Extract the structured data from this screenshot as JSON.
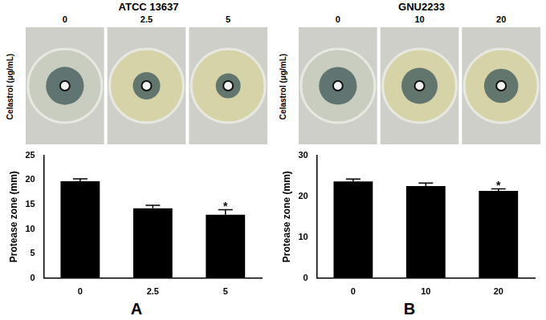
{
  "chart_data": [
    {
      "type": "bar",
      "panel": "A",
      "title": "ATCC 13637",
      "plate_label": "Celastrol (μg/mL)",
      "plate_concentrations": [
        0,
        2.5,
        5
      ],
      "categories": [
        "0",
        "2.5",
        "5"
      ],
      "values": [
        19.7,
        14.2,
        12.9
      ],
      "errors": [
        0.5,
        0.6,
        1.0
      ],
      "color": "#000000",
      "y_label": "Protease zone (mm)",
      "ylim": [
        0,
        25
      ],
      "yticks": [
        0,
        5,
        10,
        15,
        20,
        25
      ],
      "grid": false,
      "annotations": [
        {
          "category": "5",
          "text": "*"
        }
      ]
    },
    {
      "type": "bar",
      "panel": "B",
      "title": "GNU2233",
      "plate_label": "Celastrol (μg/mL)",
      "plate_concentrations": [
        0,
        10,
        20
      ],
      "categories": [
        "0",
        "10",
        "20"
      ],
      "values": [
        23.6,
        22.5,
        21.3
      ],
      "errors": [
        0.6,
        0.7,
        0.5
      ],
      "color": "#000000",
      "y_label": "Protease zone (mm)",
      "ylim": [
        0,
        30
      ],
      "yticks": [
        0,
        10,
        20,
        30
      ],
      "grid": false,
      "annotations": [
        {
          "category": "20",
          "text": "*"
        }
      ]
    }
  ]
}
